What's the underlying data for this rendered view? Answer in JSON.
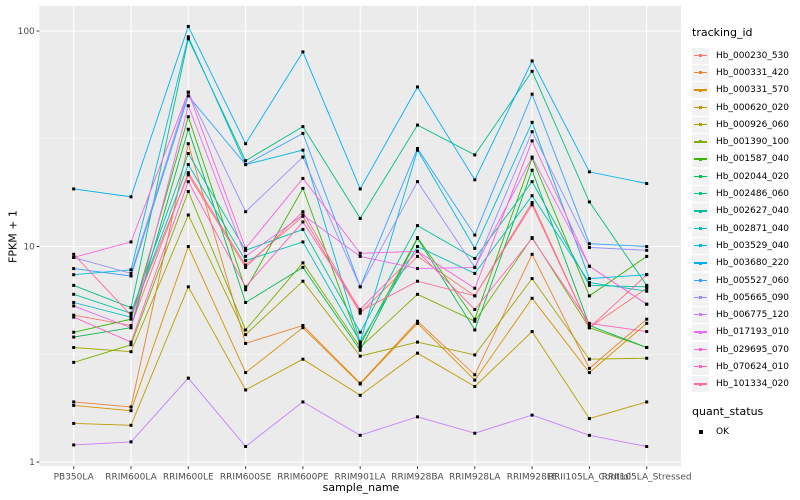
{
  "figure": {
    "y_axis_title": "FPKM + 1",
    "x_axis_title": "sample_name",
    "legend": {
      "tracking_title": "tracking_id",
      "quant_title": "quant_status",
      "quant_ok_label": "OK"
    },
    "colors": {
      "panel_bg": "#EBEBEB",
      "grid_major": "#FFFFFF",
      "tick_text": "#4D4D4D",
      "tick_mark": "#333333",
      "point": "#000000",
      "legend_key_bg": "#F2F2F2"
    }
  },
  "chart_data": {
    "type": "line",
    "title": "",
    "xlabel": "sample_name",
    "ylabel": "FPKM + 1",
    "y_scale": "log10",
    "ylim": [
      1,
      131
    ],
    "y_ticks": [
      1,
      10,
      100
    ],
    "grid": "on",
    "legend_position": "right",
    "point_style": "black-filled-square",
    "quant_status_legend": {
      "title": "quant_status",
      "items": [
        "OK"
      ]
    },
    "categories": [
      "PB350LA",
      "RRIM600LA",
      "RRIM600LE",
      "RRIM600SE",
      "RRIM600PE",
      "RRIM901LA",
      "RRIM928BA",
      "RRIM928LA",
      "RRIM928LE",
      "RRII105LA_Control",
      "RRII105LA_Stressed"
    ],
    "series": [
      {
        "name": "Hb_000230_530",
        "color": "#F8766D",
        "values": [
          4.8,
          4.3,
          22,
          8.2,
          13.8,
          4.9,
          9.0,
          5.9,
          16.0,
          4.2,
          6.4
        ]
      },
      {
        "name": "Hb_000331_420",
        "color": "#EA8331",
        "values": [
          1.9,
          1.8,
          30,
          3.55,
          4.3,
          2.32,
          4.5,
          2.54,
          9.2,
          2.72,
          4.6
        ]
      },
      {
        "name": "Hb_000331_570",
        "color": "#D89000",
        "values": [
          1.83,
          1.73,
          10,
          2.6,
          4.2,
          2.3,
          4.4,
          2.4,
          5.75,
          2.6,
          4.4
        ]
      },
      {
        "name": "Hb_000620_020",
        "color": "#C09B00",
        "values": [
          1.51,
          1.48,
          6.5,
          2.16,
          3.0,
          2.04,
          3.2,
          2.24,
          4.03,
          1.59,
          1.9
        ]
      },
      {
        "name": "Hb_000926_060",
        "color": "#A3A500",
        "values": [
          3.4,
          3.25,
          14,
          3.9,
          6.9,
          3.1,
          3.6,
          3.14,
          7.1,
          3.0,
          3.03
        ]
      },
      {
        "name": "Hb_001390_100",
        "color": "#7CAE00",
        "values": [
          2.9,
          3.5,
          18,
          4.1,
          8.4,
          3.4,
          6.0,
          4.5,
          11.0,
          4.2,
          3.4
        ]
      },
      {
        "name": "Hb_001587_040",
        "color": "#39B600",
        "values": [
          4.0,
          4.6,
          40,
          6.3,
          18.6,
          3.5,
          11.0,
          4.6,
          25.7,
          5.9,
          9.0
        ]
      },
      {
        "name": "Hb_002044_020",
        "color": "#00BB4E",
        "values": [
          3.8,
          4.2,
          35,
          5.5,
          8.0,
          3.3,
          10.9,
          4.1,
          22.6,
          4.3,
          3.4
        ]
      },
      {
        "name": "Hb_002486_060",
        "color": "#00C087",
        "values": [
          6.6,
          5.2,
          92,
          25,
          36,
          13.5,
          36.6,
          26.6,
          65,
          16.1,
          6.6
        ]
      },
      {
        "name": "Hb_002627_040",
        "color": "#00C1A3",
        "values": [
          6.0,
          4.9,
          27,
          9.6,
          12.0,
          4.0,
          12.5,
          8.8,
          20.0,
          6.6,
          6.5
        ]
      },
      {
        "name": "Hb_002871_040",
        "color": "#00BFC4",
        "values": [
          5.5,
          4.7,
          24,
          8.6,
          10.5,
          3.6,
          10.0,
          7.5,
          17.2,
          6.8,
          6.2
        ]
      },
      {
        "name": "Hb_003529_040",
        "color": "#00BAE0",
        "values": [
          7.4,
          7.8,
          94,
          24,
          28,
          3.6,
          28.0,
          9.8,
          37.7,
          7.1,
          7.4
        ]
      },
      {
        "name": "Hb_003680_220",
        "color": "#00B0F6",
        "values": [
          18.5,
          17.0,
          105,
          30,
          80,
          18.5,
          55,
          20.4,
          72.6,
          22.2,
          19.6
        ]
      },
      {
        "name": "Hb_005527_060",
        "color": "#35A2FF",
        "values": [
          7.9,
          7.3,
          50,
          24,
          33.5,
          6.5,
          28.5,
          11.3,
          50.9,
          10.3,
          10.0
        ]
      },
      {
        "name": "Hb_005665_090",
        "color": "#9590FF",
        "values": [
          8.9,
          7.5,
          52,
          14.5,
          26,
          6.5,
          20.0,
          8.0,
          34.1,
          9.9,
          9.6
        ]
      },
      {
        "name": "Hb_006775_120",
        "color": "#C77CFF",
        "values": [
          1.2,
          1.24,
          2.45,
          1.18,
          1.9,
          1.33,
          1.62,
          1.36,
          1.65,
          1.33,
          1.18
        ]
      },
      {
        "name": "Hb_017193_010",
        "color": "#E76BF3",
        "values": [
          5.3,
          4.2,
          45,
          9.0,
          14.0,
          9.0,
          7.9,
          8.0,
          26.0,
          8.1,
          5.4
        ]
      },
      {
        "name": "Hb_029695_070",
        "color": "#FA62DB",
        "values": [
          8.9,
          10.5,
          52,
          9.8,
          20.7,
          9.3,
          9.5,
          6.4,
          30.9,
          8.1,
          5.4
        ]
      },
      {
        "name": "Hb_070624_010",
        "color": "#FF62BC",
        "values": [
          4.7,
          3.6,
          20,
          6.5,
          13.0,
          5.1,
          9.5,
          5.1,
          10.9,
          4.4,
          4.03
        ]
      },
      {
        "name": "Hb_101334_020",
        "color": "#FF6A98",
        "values": [
          9.2,
          4.8,
          21.5,
          8.0,
          14.5,
          5.0,
          6.9,
          5.9,
          15.6,
          4.2,
          7.4
        ]
      }
    ]
  }
}
